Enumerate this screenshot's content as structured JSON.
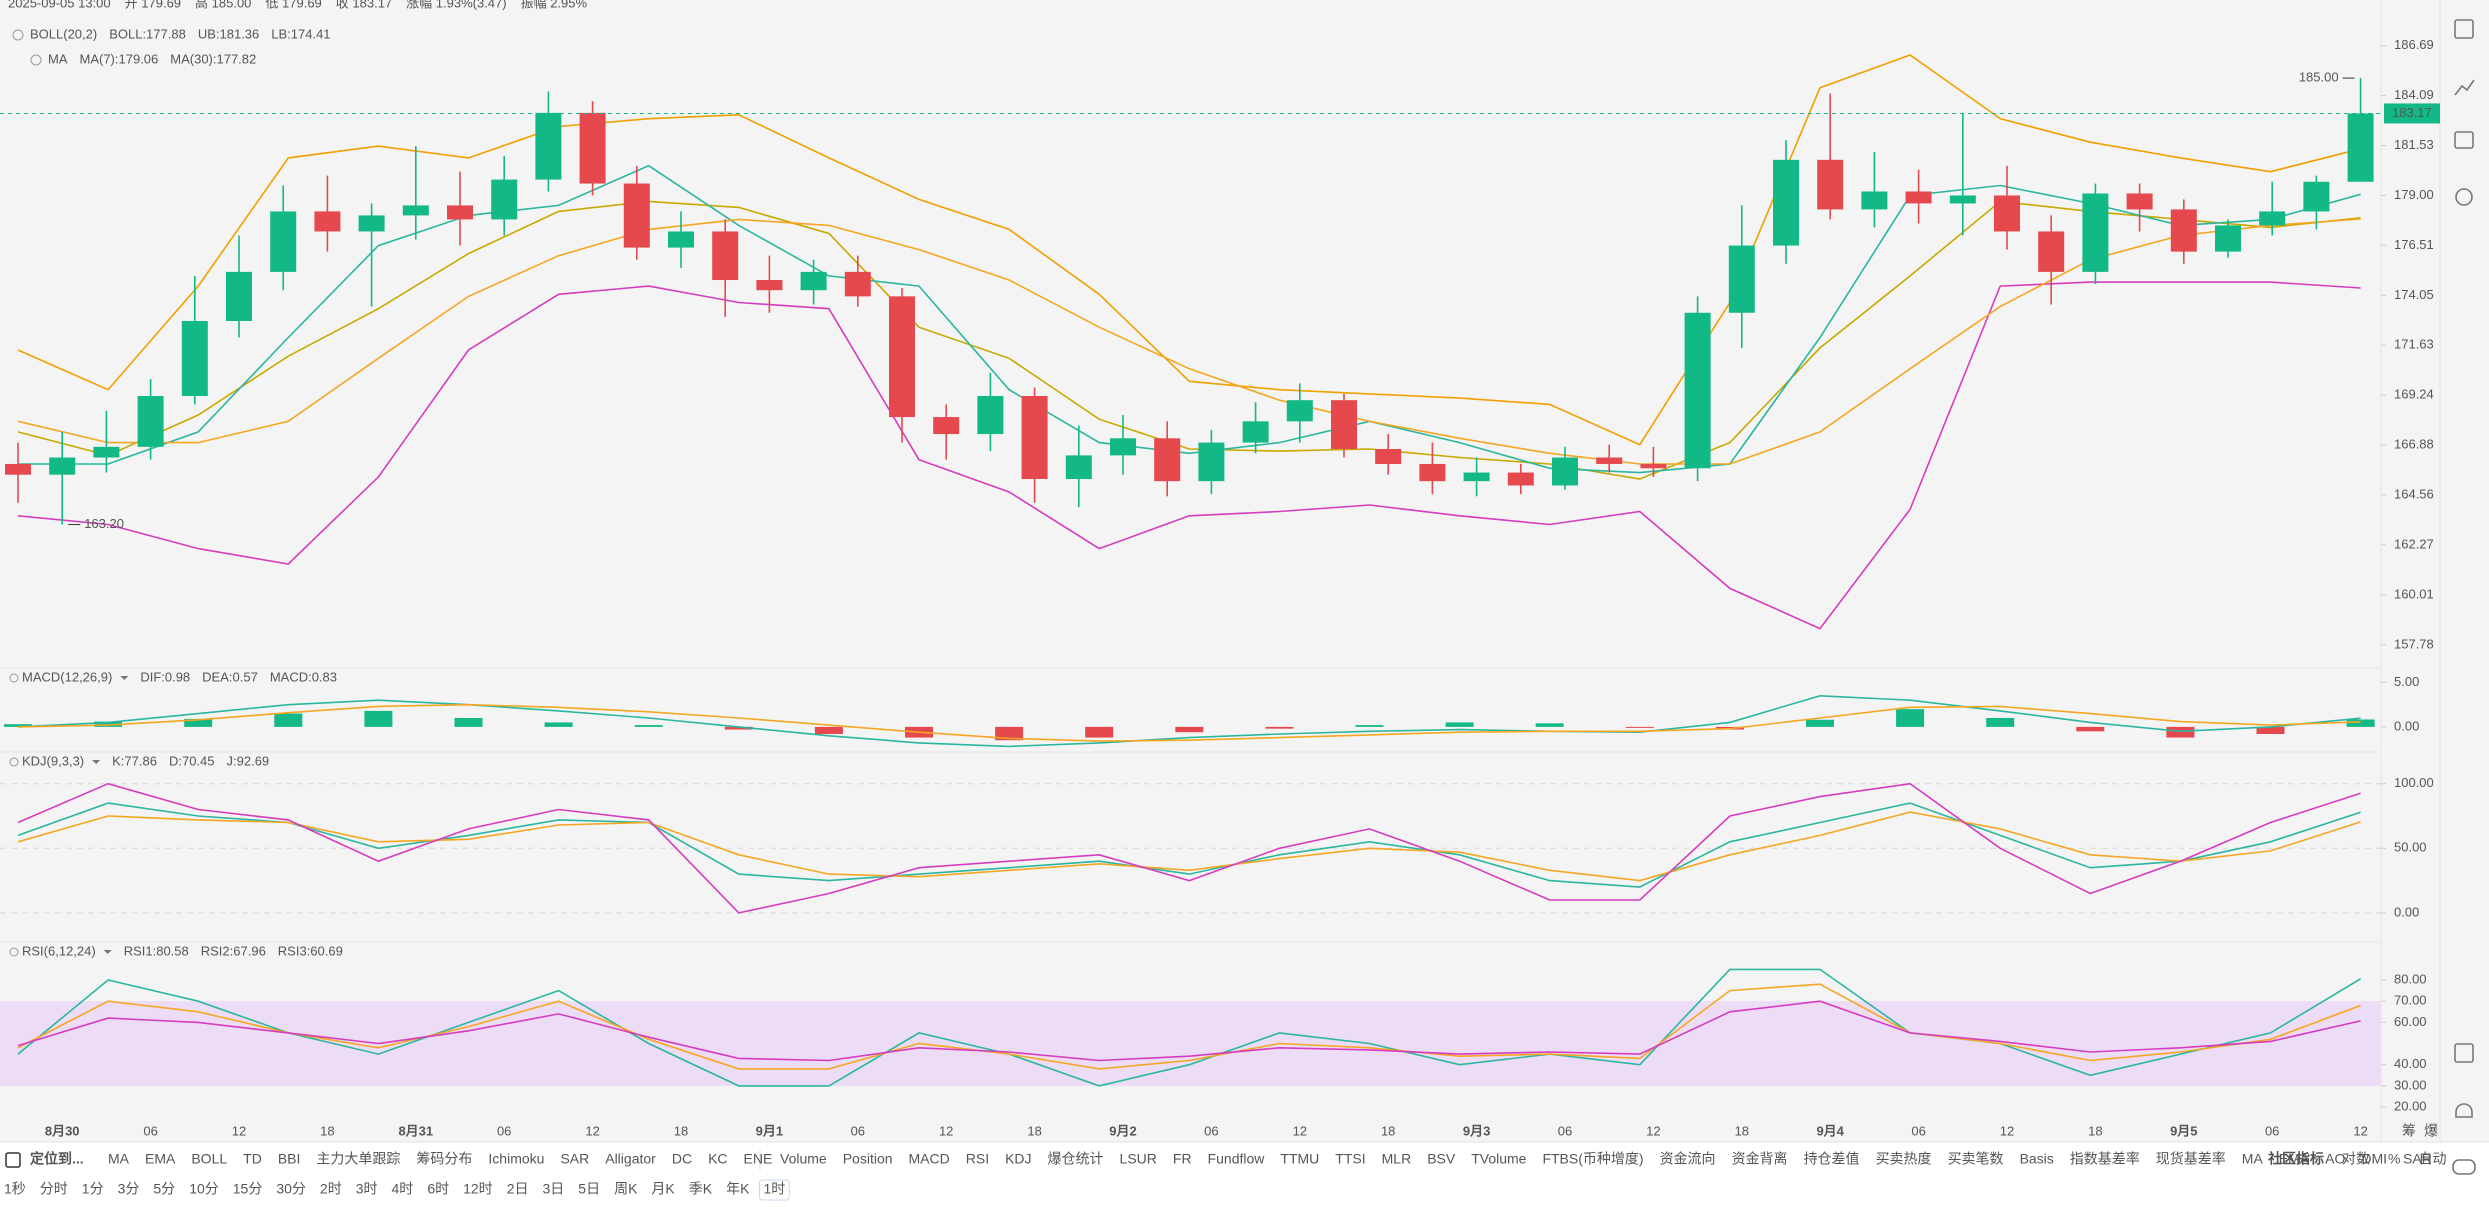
{
  "chart_data": [
    {
      "type": "candlestick",
      "header": [
        "2025-09-05 13:00",
        "开 179.69",
        "高 185.00",
        "低 179.69",
        "收 183.17",
        "涨幅 1.93%(3.47)",
        "振幅 2.95%"
      ],
      "categories": [
        null,
        "8月30",
        null,
        "06",
        null,
        "12",
        null,
        "18",
        null,
        "8月31",
        null,
        "06",
        null,
        "12",
        null,
        "18",
        null,
        "9月1",
        null,
        "06",
        null,
        "12",
        null,
        "18",
        null,
        "9月2",
        null,
        "06",
        null,
        "12",
        null,
        "18",
        null,
        "9月3",
        null,
        "06",
        null,
        "12",
        null,
        "18",
        null,
        "9月4",
        null,
        "06",
        null,
        "12",
        null,
        "18",
        null,
        "9月5",
        null,
        "06",
        null,
        "12"
      ],
      "open": [
        166.0,
        165.5,
        166.3,
        166.8,
        169.2,
        172.8,
        175.2,
        178.2,
        177.2,
        178,
        178.5,
        177.8,
        179.8,
        183.2,
        179.6,
        176.4,
        177.2,
        174.8,
        174.3,
        175.2,
        174,
        168.2,
        167.4,
        169.2,
        165.3,
        166.4,
        167.2,
        165.2,
        167,
        168,
        169,
        166.7,
        166,
        165.2,
        165.6,
        165,
        166.3,
        166,
        165.8,
        173.2,
        176.5,
        180.8,
        178.3,
        179.2,
        178.6,
        179,
        177.2,
        175.2,
        179.1,
        178.3,
        176.2,
        177.5,
        178.2,
        179.69
      ],
      "high": [
        167,
        167.5,
        168.5,
        170,
        175,
        177,
        179.5,
        180,
        178.6,
        181.5,
        180.2,
        181,
        184.3,
        183.8,
        180.5,
        178.2,
        177.8,
        176,
        175.8,
        176,
        174.4,
        168.8,
        170.3,
        169.6,
        167.8,
        168.3,
        168,
        167.6,
        168.9,
        169.8,
        169.3,
        167.4,
        167,
        166.3,
        166,
        166.8,
        166.9,
        166.8,
        174,
        178.5,
        181.8,
        184.2,
        181.2,
        180.3,
        183.2,
        180.5,
        178,
        179.6,
        179.6,
        178.8,
        177.8,
        179.7,
        180,
        185
      ],
      "low": [
        164.2,
        163.2,
        165.6,
        166.2,
        168.8,
        172,
        174.3,
        176.2,
        173.5,
        176.8,
        176.5,
        177,
        179.2,
        179,
        175.8,
        175.4,
        173,
        173.2,
        173.6,
        173.5,
        167,
        166.2,
        166.6,
        164.2,
        164,
        165.5,
        164.5,
        164.6,
        166.5,
        167,
        166.3,
        165.5,
        164.6,
        164.5,
        164.6,
        164.8,
        165.6,
        165.4,
        165.2,
        171.5,
        175.6,
        177.8,
        177.4,
        177.6,
        177,
        176.3,
        173.6,
        174.6,
        177.2,
        175.6,
        175.9,
        177,
        177.3,
        179.69
      ],
      "close": [
        165.5,
        166.3,
        166.8,
        169.2,
        172.8,
        175.2,
        178.2,
        177.2,
        178,
        178.5,
        177.8,
        179.8,
        183.2,
        179.6,
        176.4,
        177.2,
        174.8,
        174.3,
        175.2,
        174,
        168.2,
        167.4,
        169.2,
        165.3,
        166.4,
        167.2,
        165.2,
        167,
        168,
        169,
        166.7,
        166,
        165.2,
        165.6,
        165,
        166.3,
        166,
        165.8,
        173.2,
        176.5,
        180.8,
        178.3,
        179.2,
        178.6,
        179,
        177.2,
        175.2,
        179.1,
        178.3,
        176.2,
        177.5,
        178.2,
        179.69,
        183.17
      ],
      "up_color": "#12b886",
      "down_color": "#e5484d",
      "overlays": [
        {
          "title": "BOLL(20,2)",
          "series": [
            {
              "name": "BOLL:177.88",
              "color": "#c9a800",
              "values": [
                167.5,
                166.4,
                168.3,
                171.1,
                173.4,
                176.1,
                178.2,
                178.7,
                178.4,
                177.1,
                172.5,
                171.0,
                168.1,
                166.7,
                166.6,
                166.7,
                166.3,
                166.0,
                165.3,
                167.0,
                171.5,
                175.0,
                178.7,
                178.2,
                177.8,
                177.4,
                177.88
              ]
            },
            {
              "name": "UB:181.36",
              "color": "#f0a000",
              "values": [
                171.4,
                169.5,
                174.5,
                180.9,
                181.5,
                180.9,
                182.5,
                182.9,
                183.1,
                180.9,
                178.8,
                177.3,
                174.1,
                169.9,
                169.5,
                169.3,
                169.1,
                168.8,
                166.9,
                173.7,
                184.5,
                186.2,
                182.9,
                181.7,
                180.9,
                180.2,
                181.36
              ]
            },
            {
              "name": "LB:174.41",
              "color": "#d63cbf",
              "values": [
                163.6,
                163.2,
                162.1,
                161.4,
                165.4,
                171.4,
                174.1,
                174.5,
                173.7,
                173.4,
                166.2,
                164.7,
                162.1,
                163.6,
                163.8,
                164.1,
                163.6,
                163.2,
                163.8,
                160.3,
                158.5,
                163.9,
                174.5,
                174.7,
                174.7,
                174.7,
                174.41
              ]
            }
          ]
        },
        {
          "title": "MA",
          "series": [
            {
              "name": "MA(7):179.06",
              "color": "#2ab6a0",
              "values": [
                166,
                166,
                167.5,
                172,
                176.5,
                178,
                178.5,
                180.5,
                177.5,
                175,
                174.5,
                169.5,
                167,
                166.5,
                167,
                168,
                167,
                165.8,
                165.6,
                166,
                172,
                179,
                179.5,
                178.6,
                177.5,
                177.8,
                179.06
              ]
            },
            {
              "name": "MA(30):177.82",
              "color": "#f5a623",
              "values": [
                168,
                167,
                167,
                168,
                171,
                174,
                176,
                177.3,
                177.8,
                177.5,
                176.3,
                174.8,
                172.5,
                170.5,
                169,
                168,
                167.2,
                166.5,
                166,
                166,
                167.5,
                170.5,
                173.5,
                175.8,
                177,
                177.5,
                177.82
              ]
            }
          ]
        }
      ],
      "ylim": [
        156.8,
        189.1
      ],
      "log": true,
      "yticks": [
        186.69,
        184.09,
        181.53,
        {
          "value": 179,
          "label": "179.00"
        },
        176.51,
        174.05,
        171.63,
        169.24,
        166.88,
        164.56,
        162.27,
        160.01,
        157.78
      ],
      "grid": false,
      "last_price": 183.17,
      "high_marker": {
        "value": 185,
        "label": "185.00"
      },
      "low_marker": {
        "value": 163.2,
        "label": "163.20"
      }
    },
    {
      "type": "macd",
      "title": "MACD(12,26,9)",
      "series": [
        {
          "name": "DIF:0.98",
          "color": "#2ab6a0",
          "values": [
            0.0,
            0.5,
            1.5,
            2.5,
            3.0,
            2.5,
            1.8,
            1.0,
            0.0,
            -1.0,
            -1.8,
            -2.2,
            -1.8,
            -1.2,
            -0.8,
            -0.5,
            -0.3,
            -0.5,
            -0.6,
            0.5,
            3.5,
            3.0,
            1.8,
            0.5,
            -0.5,
            0.0,
            0.98
          ]
        },
        {
          "name": "DEA:0.57",
          "color": "#f5a623",
          "values": [
            0.0,
            0.2,
            0.8,
            1.6,
            2.3,
            2.5,
            2.2,
            1.7,
            1.0,
            0.2,
            -0.6,
            -1.3,
            -1.6,
            -1.5,
            -1.2,
            -0.9,
            -0.6,
            -0.5,
            -0.5,
            -0.2,
            1.0,
            2.2,
            2.3,
            1.5,
            0.6,
            0.2,
            0.57
          ]
        }
      ],
      "histogram": {
        "name": "MACD:0.83",
        "color": "#12b886",
        "down_color": "#e5484d",
        "values": [
          0.3,
          0.6,
          0.9,
          1.5,
          1.8,
          1.0,
          0.5,
          0.2,
          -0.3,
          -0.8,
          -1.2,
          -1.5,
          -1.2,
          -0.6,
          -0.2,
          0.2,
          0.5,
          0.4,
          -0.1,
          -0.3,
          0.8,
          2.0,
          1.0,
          -0.5,
          -1.2,
          -0.8,
          0.83
        ]
      },
      "ylim": [
        -2.6,
        6.4
      ],
      "yticks": [
        {
          "value": 5,
          "label": "5.00"
        },
        {
          "value": 0,
          "label": "0.00"
        }
      ],
      "grid": false
    },
    {
      "type": "line",
      "title": "KDJ(9,3,3)",
      "series": [
        {
          "name": "K:77.86",
          "color": "#2ab6a0",
          "values": [
            60,
            85,
            75,
            70,
            50,
            60,
            72,
            70,
            30,
            25,
            30,
            35,
            40,
            30,
            45,
            55,
            45,
            25,
            20,
            55,
            70,
            85,
            60,
            35,
            40,
            55,
            77.86
          ]
        },
        {
          "name": "D:70.45",
          "color": "#f5a623",
          "values": [
            55,
            75,
            72,
            70,
            55,
            57,
            68,
            70,
            45,
            30,
            28,
            33,
            38,
            33,
            42,
            50,
            47,
            33,
            25,
            45,
            60,
            78,
            65,
            45,
            40,
            48,
            70.45
          ]
        },
        {
          "name": "J:92.69",
          "color": "#d63cbf",
          "values": [
            70,
            100,
            80,
            72,
            40,
            65,
            80,
            72,
            0,
            15,
            35,
            40,
            45,
            25,
            50,
            65,
            40,
            10,
            10,
            75,
            90,
            100,
            50,
            15,
            40,
            70,
            92.69
          ]
        }
      ],
      "ylim": [
        -21,
        123
      ],
      "yticks": [
        {
          "value": 100,
          "label": "100.00"
        },
        {
          "value": 50,
          "label": "50.00"
        },
        {
          "value": 0,
          "label": "0.00"
        }
      ],
      "grid": true
    },
    {
      "type": "line",
      "title": "RSI(6,12,24)",
      "series": [
        {
          "name": "RSI1:80.58",
          "color": "#2ab6a0",
          "values": [
            45,
            80,
            70,
            55,
            45,
            60,
            75,
            50,
            30,
            30,
            55,
            45,
            30,
            40,
            55,
            50,
            40,
            45,
            40,
            85,
            85,
            55,
            50,
            35,
            45,
            55,
            80.58
          ]
        },
        {
          "name": "RSI2:67.96",
          "color": "#f5a623",
          "values": [
            48,
            70,
            65,
            55,
            48,
            58,
            70,
            52,
            38,
            38,
            50,
            45,
            38,
            42,
            50,
            48,
            44,
            45,
            43,
            75,
            78,
            55,
            50,
            42,
            46,
            52,
            67.96
          ]
        },
        {
          "name": "RSI3:60.69",
          "color": "#d63cbf",
          "values": [
            49,
            62,
            60,
            55,
            50,
            56,
            64,
            53,
            43,
            42,
            48,
            46,
            42,
            44,
            48,
            47,
            45,
            46,
            45,
            65,
            70,
            55,
            51,
            46,
            48,
            51,
            60.69
          ]
        }
      ],
      "band": [
        30,
        70
      ],
      "band_color": "#ecdcf5",
      "ylim": [
        12,
        97
      ],
      "yticks": [
        {
          "value": 80,
          "label": "80.00"
        },
        {
          "value": 70,
          "label": "70.00"
        },
        {
          "value": 60,
          "label": "60.00"
        },
        {
          "value": 40,
          "label": "40.00"
        },
        {
          "value": 30,
          "label": "30.00"
        },
        {
          "value": 20,
          "label": "20.00"
        }
      ],
      "grid": false
    }
  ],
  "toolbar": {
    "locate": "定位到...",
    "left": [
      "MA",
      "EMA",
      "BOLL",
      "TD",
      "BBI",
      "主力大单跟踪",
      "筹码分布",
      "Ichimoku",
      "SAR",
      "Alligator",
      "DC",
      "KC",
      "ENE"
    ],
    "left_active": [
      0,
      2
    ],
    "right": [
      "Volume",
      "Position",
      "MACD",
      "RSI",
      "KDJ",
      "爆仓统计",
      "LSUR",
      "FR",
      "Fundflow",
      "TTMU",
      "TTSI",
      "MLR",
      "BSV",
      "TVolume",
      "FTBS(币种增度)",
      "资金流向",
      "资金背离",
      "持仓差值",
      "买卖热度",
      "买卖笔数",
      "Basis",
      "指数基差率",
      "现货基差率",
      "MA",
      "EMA",
      "AO",
      "DMI",
      "SAR"
    ],
    "right_active": [
      2,
      3,
      4
    ],
    "settings": [
      "社区指标",
      "对数",
      "%",
      "自动"
    ],
    "settings_active": [
      1,
      3
    ],
    "timeframes": [
      "1秒",
      "分时",
      "1分",
      "3分",
      "5分",
      "10分",
      "15分",
      "30分",
      "2时",
      "3时",
      "4时",
      "6时",
      "12时",
      "2日",
      "3日",
      "5日",
      "周K",
      "月K",
      "季K",
      "年K",
      "1时"
    ],
    "timeframe_active": [
      20
    ],
    "corner": [
      "筹",
      "爆"
    ]
  }
}
